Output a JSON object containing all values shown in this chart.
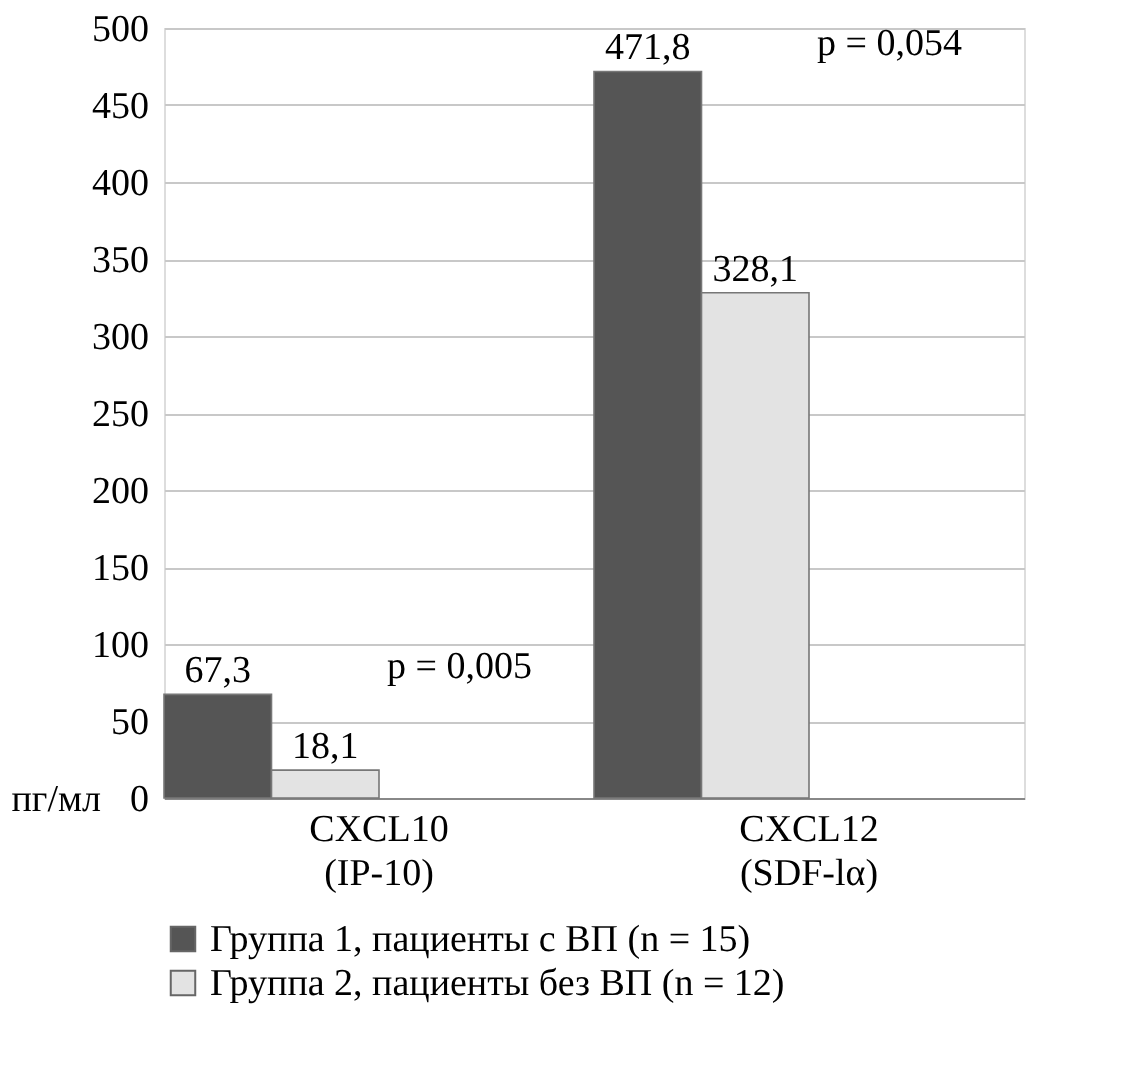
{
  "chart_data": {
    "type": "bar",
    "categories": [
      "CXCL10 (IP-10)",
      "CXCL12 (SDF-lα)"
    ],
    "series": [
      {
        "name": "Группа 1, пациенты с ВП (n = 15)",
        "color": "#555555",
        "values": [
          67.3,
          471.8
        ],
        "value_labels": [
          "67,3",
          "471,8"
        ]
      },
      {
        "name": "Группа 2, пациенты без ВП (n = 12)",
        "color": "#e3e3e3",
        "values": [
          18.1,
          328.1
        ],
        "value_labels": [
          "18,1",
          "328,1"
        ]
      }
    ],
    "ylabel": "пг/мл",
    "ylim": [
      0,
      500
    ],
    "yticks": [
      0,
      50,
      100,
      150,
      200,
      250,
      300,
      350,
      400,
      450,
      500
    ],
    "annotations": [
      "p = 0,005",
      "p = 0,054"
    ],
    "grid": "y",
    "legend": "bottom"
  }
}
